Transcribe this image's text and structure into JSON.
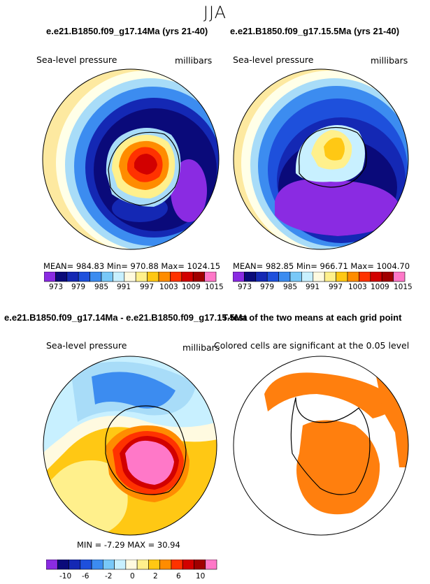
{
  "season": "JJA",
  "panel1": {
    "title": "e.e21.B1850.f09_g17.14Ma (yrs 21-40)",
    "variable": "Sea-level pressure",
    "units": "millibars",
    "stats": "MEAN= 984.83   Min= 970.88   Max= 1024.15"
  },
  "panel2": {
    "title": "e.e21.B1850.f09_g17.15.5Ma (yrs 21-40)",
    "variable": "Sea-level pressure",
    "units": "millibars",
    "stats": "MEAN= 982.85   Min= 966.71   Max= 1004.70"
  },
  "panel3": {
    "title": "e.e21.B1850.f09_g17.14Ma - e.e21.B1850.f09_g17.15.5Ma",
    "variable": "Sea-level pressure",
    "units": "millibars",
    "stats": "MIN =   -7.29  MAX =    30.94"
  },
  "panel4": {
    "title": "T-test of the two means at each grid point",
    "note": "Colored cells are significant at the 0.05 level"
  },
  "colorbar_abs": {
    "colors": [
      "#8a2be2",
      "#0a0a7a",
      "#1428b4",
      "#1e50dc",
      "#3c8cf0",
      "#78c8f8",
      "#c8f0ff",
      "#fffae0",
      "#fff08c",
      "#ffc814",
      "#ff8c00",
      "#ff3200",
      "#d20000",
      "#a00000",
      "#ff78c8"
    ],
    "ticks": [
      "973",
      "979",
      "985",
      "991",
      "997",
      "1003",
      "1009",
      "1015"
    ]
  },
  "colorbar_diff": {
    "colors": [
      "#8a2be2",
      "#0a0a7a",
      "#1428b4",
      "#1e50dc",
      "#3c8cf0",
      "#78c8f8",
      "#c8f0ff",
      "#fffae0",
      "#fff08c",
      "#ffc814",
      "#ff8c00",
      "#ff3200",
      "#d20000",
      "#a00000",
      "#ff78c8"
    ],
    "ticks": [
      "-10",
      "-6",
      "-2",
      "0",
      "2",
      "6",
      "10"
    ]
  },
  "significance_color": "#ff7f0e"
}
